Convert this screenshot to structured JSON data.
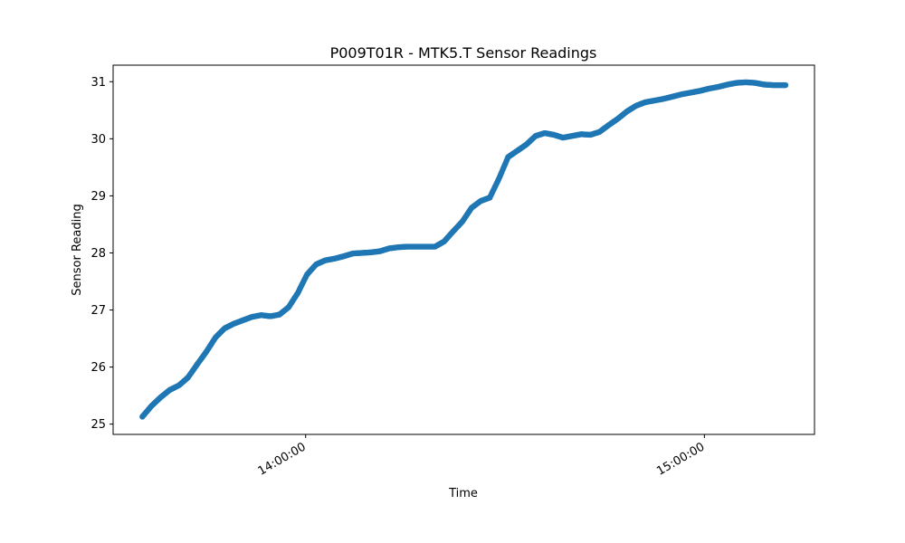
{
  "chart_data": {
    "type": "scatter",
    "title": "P009T01R - MTK5.T Sensor Readings",
    "xlabel": "Time",
    "ylabel": "Sensor Reading",
    "xlim": [
      "13:31:02",
      "15:16:34"
    ],
    "ylim": [
      24.82,
      31.29
    ],
    "x_ticks": [
      "14:00:00",
      "15:00:00"
    ],
    "y_ticks": [
      25,
      26,
      27,
      28,
      29,
      30,
      31
    ],
    "grid": false,
    "marker_color": "#1f77b4",
    "x": [
      "13:35:26",
      "13:36:49",
      "13:38:11",
      "13:39:34",
      "13:40:57",
      "13:42:19",
      "13:43:42",
      "13:45:04",
      "13:46:27",
      "13:47:49",
      "13:49:12",
      "13:50:34",
      "13:51:57",
      "13:53:19",
      "13:54:42",
      "13:56:04",
      "13:57:27",
      "13:58:50",
      "14:00:12",
      "14:01:35",
      "14:02:57",
      "14:04:20",
      "14:05:42",
      "14:07:05",
      "14:08:27",
      "14:09:50",
      "14:11:12",
      "14:12:35",
      "14:13:57",
      "14:15:20",
      "14:16:43",
      "14:18:05",
      "14:19:28",
      "14:20:50",
      "14:22:13",
      "14:23:35",
      "14:24:58",
      "14:26:20",
      "14:27:43",
      "14:29:05",
      "14:30:28",
      "14:31:51",
      "14:33:13",
      "14:34:36",
      "14:35:58",
      "14:37:21",
      "14:38:43",
      "14:40:06",
      "14:41:28",
      "14:42:51",
      "14:44:13",
      "14:45:36",
      "14:46:58",
      "14:48:21",
      "14:49:44",
      "14:51:06",
      "14:52:29",
      "14:53:51",
      "14:55:14",
      "14:56:36",
      "14:57:59",
      "14:59:21",
      "15:00:44",
      "15:02:06",
      "15:03:29",
      "15:04:51",
      "15:06:14",
      "15:07:37",
      "15:08:59",
      "15:10:22",
      "15:11:44",
      "15:12:12"
    ],
    "y": [
      25.13,
      25.32,
      25.47,
      25.6,
      25.68,
      25.82,
      26.05,
      26.27,
      26.52,
      26.68,
      26.76,
      26.82,
      26.88,
      26.91,
      26.89,
      26.92,
      27.05,
      27.3,
      27.62,
      27.8,
      27.87,
      27.9,
      27.94,
      27.99,
      28.0,
      28.01,
      28.03,
      28.08,
      28.1,
      28.11,
      28.11,
      28.11,
      28.11,
      28.2,
      28.38,
      28.55,
      28.79,
      28.91,
      28.97,
      29.3,
      29.68,
      29.79,
      29.9,
      30.05,
      30.1,
      30.07,
      30.02,
      30.05,
      30.08,
      30.07,
      30.12,
      30.24,
      30.35,
      30.48,
      30.58,
      30.64,
      30.67,
      30.7,
      30.74,
      30.78,
      30.81,
      30.84,
      30.88,
      30.91,
      30.95,
      30.98,
      30.99,
      30.98,
      30.95,
      30.94,
      30.94,
      30.94
    ]
  }
}
